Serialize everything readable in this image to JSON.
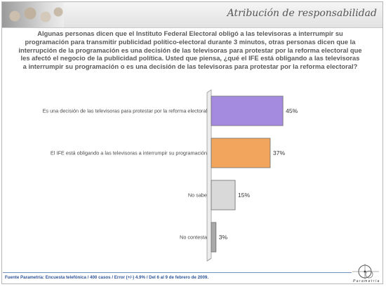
{
  "header": {
    "title": "Atribución de responsabilidad"
  },
  "question": "Algunas personas dicen que el Instituto Federal Electoral obligó a las televisoras a interrumpir su programación para transmitir publicidad político-electoral durante 3 minutos, otras personas dicen que la interrupción de la programación es una decisión de las televisoras para protestar por la reforma electoral que les afectó el negocio de la publicidad política. Usted que piensa, ¿qué el IFE está obligando a las televisoras a interrumpir su programación o es una decisión de las televisoras para protestar por la reforma electoral?",
  "chart_data": {
    "type": "bar",
    "orientation": "horizontal",
    "categories": [
      "Es una decisión de las televisoras para protestar por la reforma electoral",
      "El IFE está obligando a las televisoras a interrumpir su programación",
      "No sabe",
      "No contesta"
    ],
    "values": [
      45,
      37,
      15,
      3
    ],
    "value_labels": [
      "45%",
      "37%",
      "15%",
      "3%"
    ],
    "colors": [
      "#a58be0",
      "#f2a55c",
      "#d9d9d9",
      "#a9a9a9"
    ],
    "xlim": [
      0,
      100
    ],
    "grid": false,
    "legend": "none"
  },
  "footer": {
    "source": "Fuente Parametría: Encuesta telefónica / 400 casos / Error (+/-) 4.9% / Del 6 al 9 de febrero de 2009."
  },
  "logo": {
    "text": "Parametría"
  }
}
